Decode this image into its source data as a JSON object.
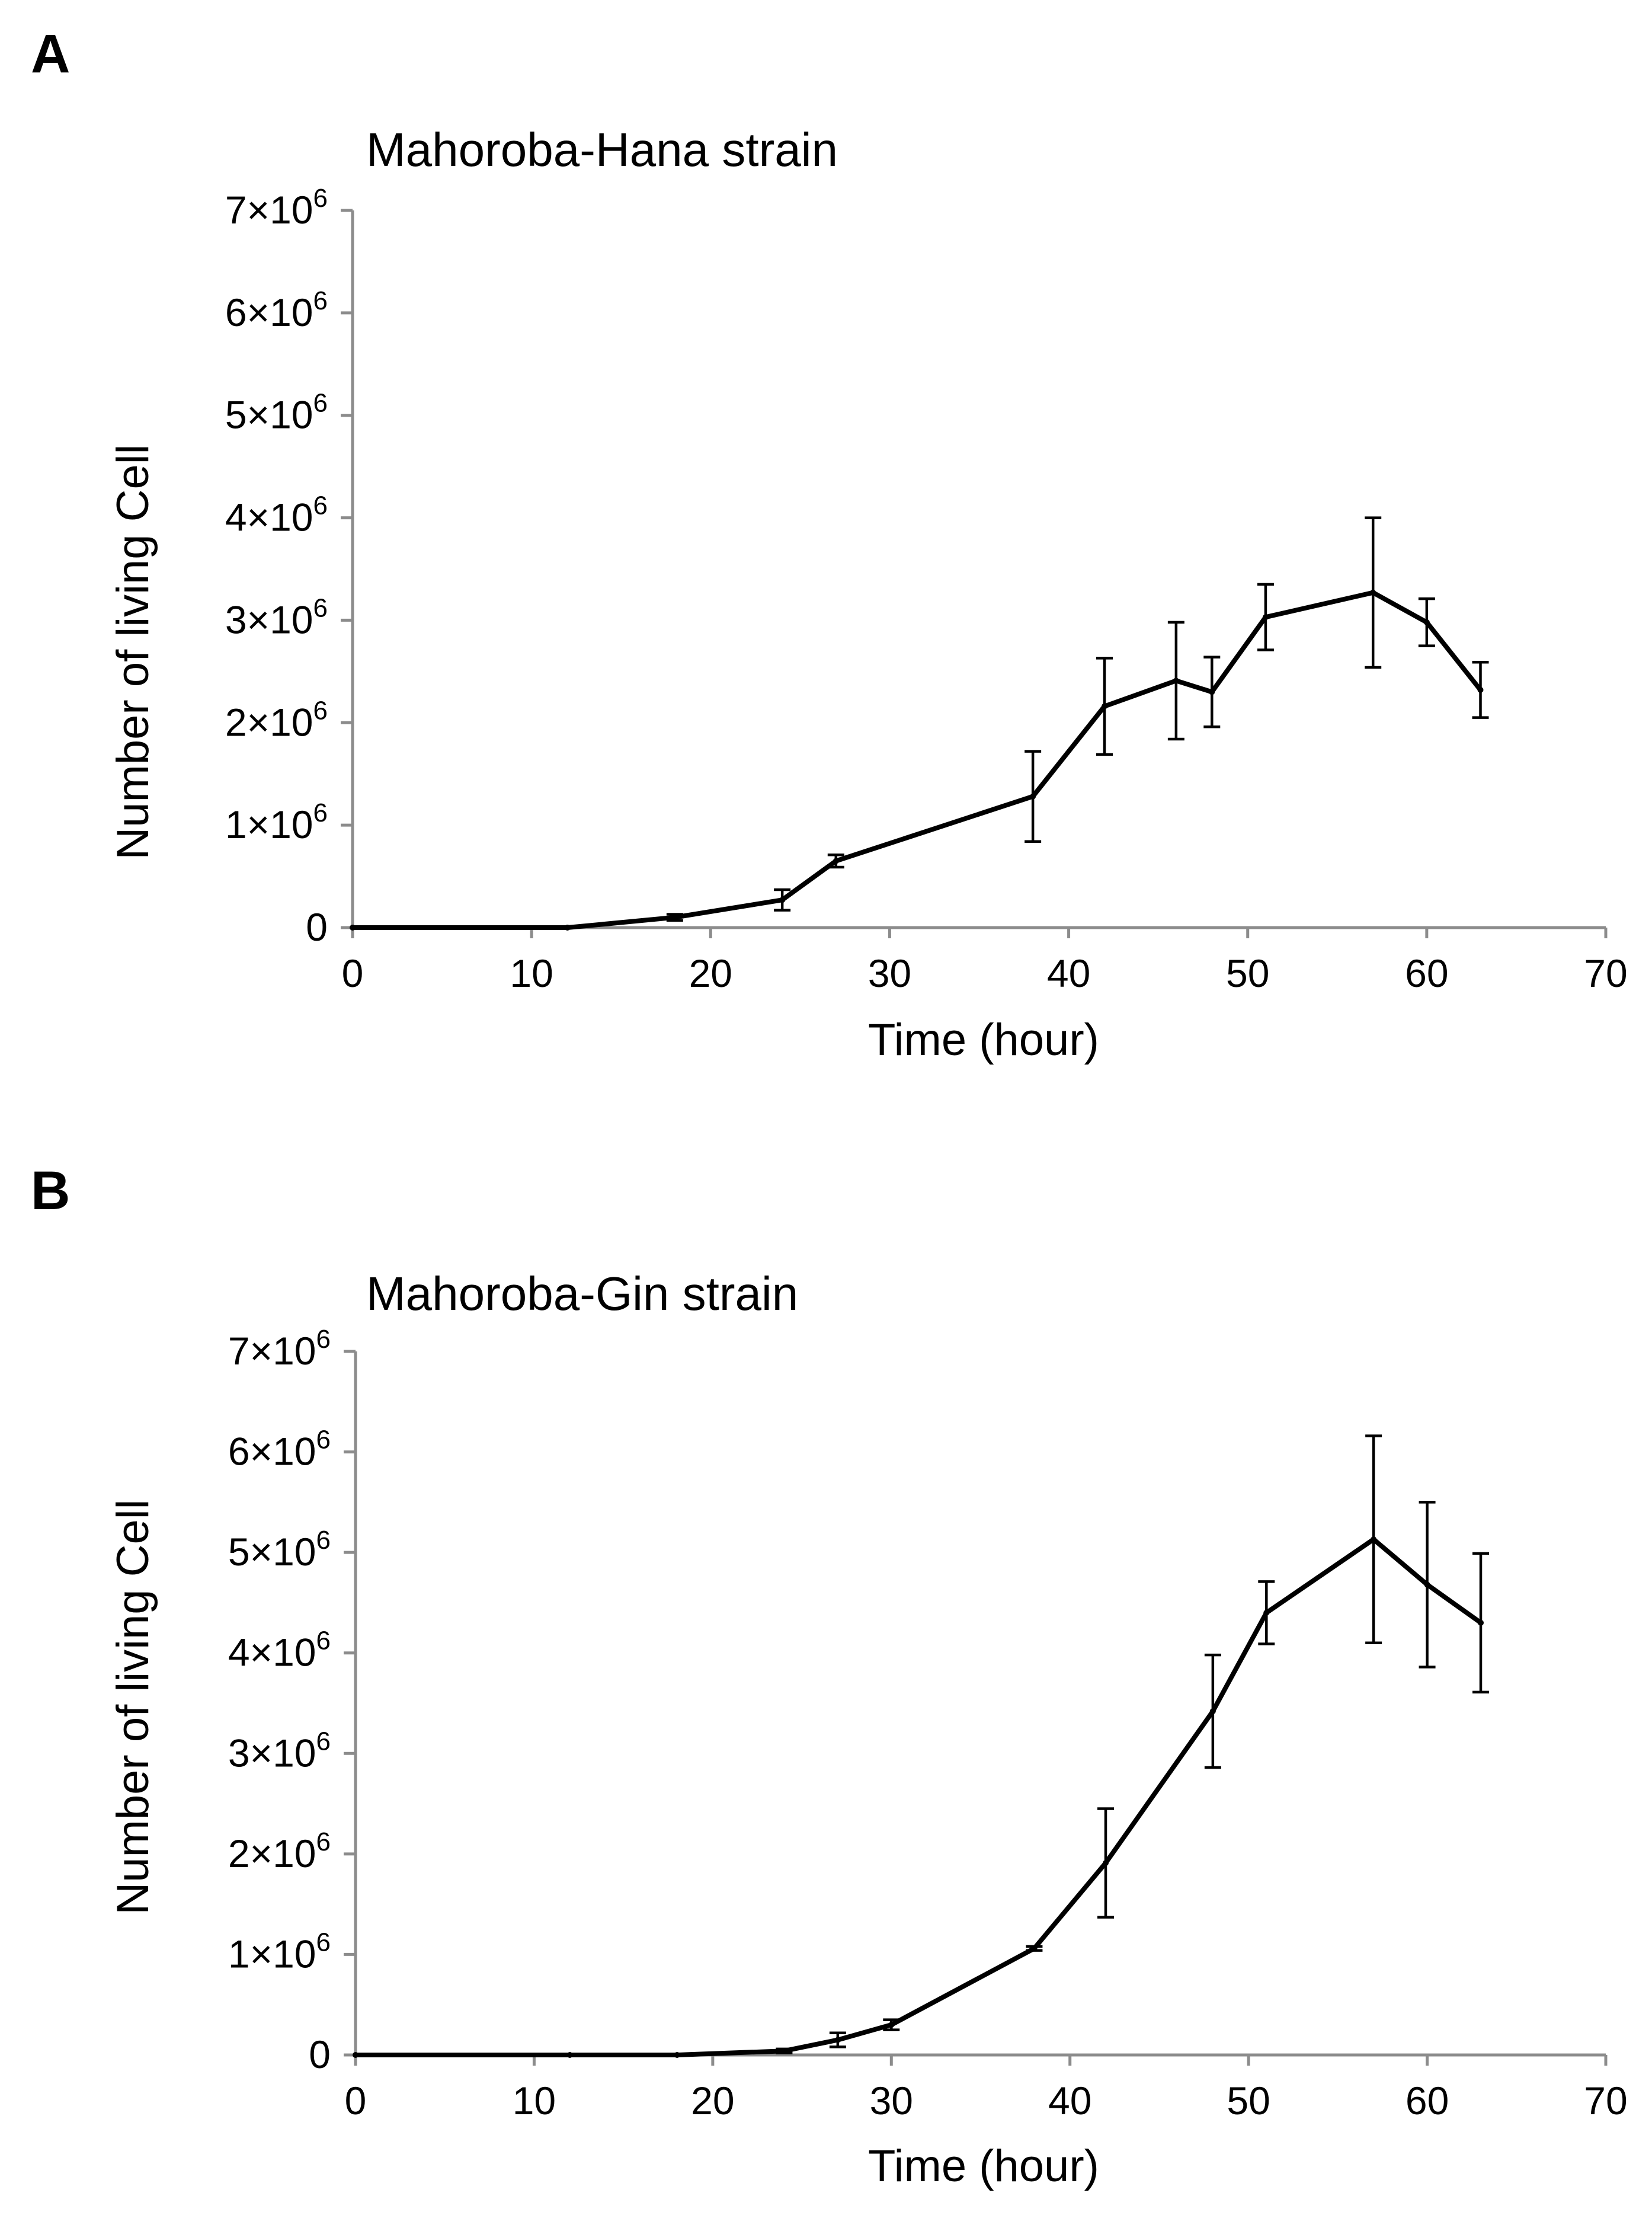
{
  "chart_data": [
    {
      "panel": "A",
      "type": "line",
      "title": "Mahoroba-Hana strain",
      "xlabel": "Time (hour)",
      "ylabel": "Number of living Cell",
      "xlim": [
        0,
        70
      ],
      "ylim": [
        0,
        7000000
      ],
      "grid": false,
      "xticks": [
        0,
        10,
        20,
        30,
        40,
        50,
        60,
        70
      ],
      "yticks": [
        {
          "value": 0,
          "label": "0"
        },
        {
          "value": 1000000,
          "mant": "1",
          "exp": "6"
        },
        {
          "value": 2000000,
          "mant": "2",
          "exp": "6"
        },
        {
          "value": 3000000,
          "mant": "3",
          "exp": "6"
        },
        {
          "value": 4000000,
          "mant": "4",
          "exp": "6"
        },
        {
          "value": 5000000,
          "mant": "5",
          "exp": "6"
        },
        {
          "value": 6000000,
          "mant": "6",
          "exp": "6"
        },
        {
          "value": 7000000,
          "mant": "7",
          "exp": "6"
        }
      ],
      "x": [
        0,
        12,
        18,
        24,
        27,
        38,
        42,
        46,
        48,
        51,
        57,
        60,
        63
      ],
      "y": [
        0,
        0,
        100000,
        270000,
        650000,
        1280000,
        2160000,
        2410000,
        2300000,
        3030000,
        3270000,
        2980000,
        2320000
      ],
      "yerr": [
        0,
        0,
        30000,
        100000,
        60000,
        440000,
        470000,
        570000,
        340000,
        320000,
        730000,
        230000,
        270000
      ]
    },
    {
      "panel": "B",
      "type": "line",
      "title": "Mahoroba-Gin strain",
      "xlabel": "Time (hour)",
      "ylabel": "Number of living Cell",
      "xlim": [
        0,
        70
      ],
      "ylim": [
        0,
        7000000
      ],
      "grid": false,
      "xticks": [
        0,
        10,
        20,
        30,
        40,
        50,
        60,
        70
      ],
      "yticks": [
        {
          "value": 0,
          "label": "0"
        },
        {
          "value": 1000000,
          "mant": "1",
          "exp": "6"
        },
        {
          "value": 2000000,
          "mant": "2",
          "exp": "6"
        },
        {
          "value": 3000000,
          "mant": "3",
          "exp": "6"
        },
        {
          "value": 4000000,
          "mant": "4",
          "exp": "6"
        },
        {
          "value": 5000000,
          "mant": "5",
          "exp": "6"
        },
        {
          "value": 6000000,
          "mant": "6",
          "exp": "6"
        },
        {
          "value": 7000000,
          "mant": "7",
          "exp": "6"
        }
      ],
      "x": [
        0,
        12,
        18,
        24,
        27,
        30,
        38,
        42,
        48,
        51,
        57,
        60,
        63
      ],
      "y": [
        0,
        0,
        0,
        40000,
        150000,
        300000,
        1060000,
        1910000,
        3420000,
        4400000,
        5130000,
        4680000,
        4300000
      ],
      "yerr": [
        0,
        0,
        0,
        20000,
        70000,
        50000,
        20000,
        540000,
        560000,
        310000,
        1030000,
        820000,
        690000
      ]
    }
  ]
}
